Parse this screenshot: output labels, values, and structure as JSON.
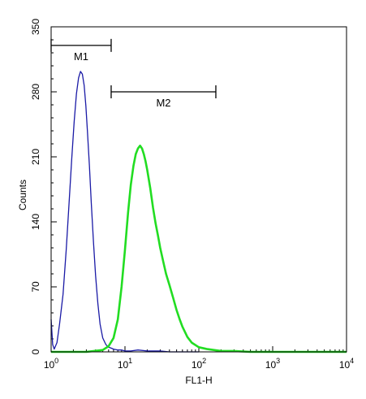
{
  "chart_data": {
    "type": "line",
    "xlabel": "FL1-H",
    "ylabel": "Counts",
    "x_scale": "log",
    "xlim": [
      1,
      10000
    ],
    "ylim": [
      0,
      350
    ],
    "x_ticks": [
      {
        "value": 1,
        "base": "10",
        "exp": "0"
      },
      {
        "value": 10,
        "base": "10",
        "exp": "1"
      },
      {
        "value": 100,
        "base": "10",
        "exp": "2"
      },
      {
        "value": 1000,
        "base": "10",
        "exp": "3"
      },
      {
        "value": 10000,
        "base": "10",
        "exp": "4"
      }
    ],
    "y_ticks": [
      0,
      70,
      140,
      210,
      280,
      350
    ],
    "gates": [
      {
        "label": "M1",
        "x_start": 1,
        "x_end": 6.5,
        "y": 330
      },
      {
        "label": "M2",
        "x_start": 6.5,
        "x_end": 170,
        "y": 280
      }
    ],
    "series": [
      {
        "color": "#1a1aa6",
        "x": [
          1,
          1.05,
          1.1,
          1.2,
          1.3,
          1.45,
          1.6,
          1.75,
          1.9,
          2.05,
          2.2,
          2.35,
          2.5,
          2.65,
          2.8,
          2.95,
          3.1,
          3.3,
          3.5,
          3.75,
          4.0,
          4.3,
          4.6,
          5.0,
          5.5,
          6.0,
          6.5,
          7.0,
          8.0,
          9.0,
          10,
          12,
          15,
          20,
          30,
          40,
          60,
          100
        ],
        "y": [
          35,
          8,
          3,
          10,
          30,
          62,
          110,
          160,
          208,
          248,
          278,
          295,
          302,
          299,
          287,
          265,
          238,
          200,
          160,
          118,
          82,
          52,
          30,
          15,
          8,
          5,
          4,
          3,
          2,
          2,
          1,
          1,
          2,
          1,
          1,
          0,
          0,
          0
        ]
      },
      {
        "color": "#22dd22",
        "x": [
          1,
          3,
          5,
          6,
          7,
          8,
          9,
          10,
          11,
          12,
          13,
          14,
          15,
          16,
          17,
          18,
          19,
          20,
          22,
          24,
          26,
          28,
          30,
          33,
          36,
          40,
          45,
          50,
          55,
          60,
          70,
          80,
          100,
          130,
          200,
          300,
          500,
          1000,
          10000
        ],
        "y": [
          0,
          0,
          2,
          6,
          15,
          35,
          70,
          110,
          150,
          180,
          200,
          213,
          219,
          222,
          219,
          213,
          205,
          196,
          176,
          155,
          138,
          125,
          112,
          97,
          84,
          72,
          58,
          45,
          35,
          27,
          16,
          10,
          5,
          3,
          1,
          1,
          0,
          0,
          0
        ]
      }
    ]
  }
}
